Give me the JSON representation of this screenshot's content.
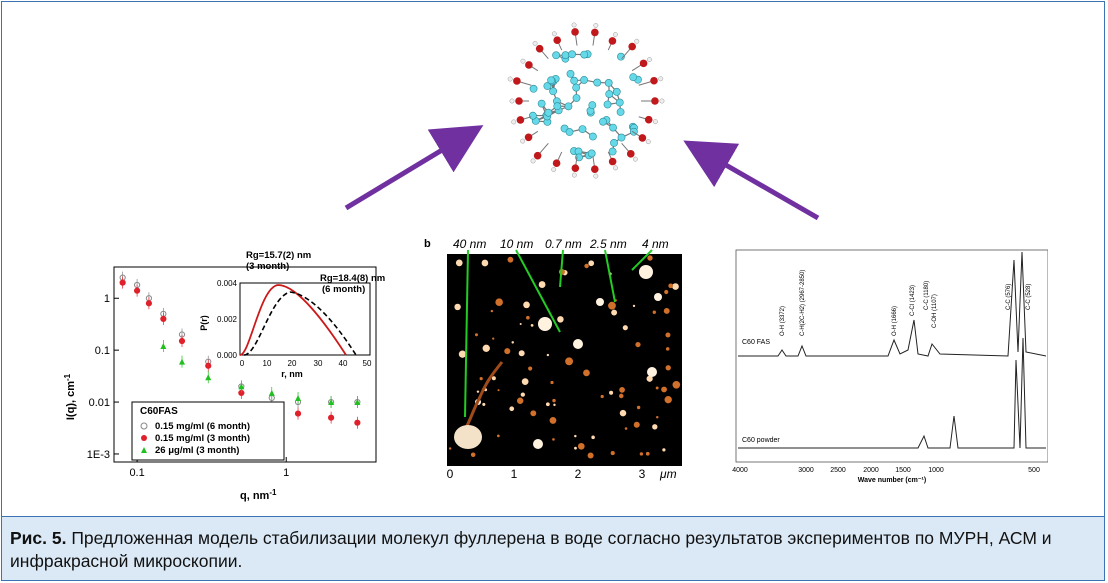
{
  "caption": {
    "label": "Рис. 5.",
    "text": " Предложенная модель стабилизации молекул фуллерена в воде согласно результатов экспериментов по МУРН, АСМ и инфракрасной микроскопии."
  },
  "colors": {
    "frame": "#3a74b5",
    "caption_bg": "#dbe9f7",
    "arrow": "#7030a0",
    "atom_c": "#66d9e8",
    "atom_o": "#c0181b"
  },
  "sans_panel": {
    "ylabel": "I(q), cm",
    "ylabel_sup": "-1",
    "xlabel": "q, nm",
    "xlabel_sup": "-1",
    "y_ticks": [
      "1",
      "0.1",
      "0.01",
      "1E-3"
    ],
    "x_ticks": [
      "0.1",
      "1"
    ],
    "legend_title": "C60FAS",
    "legend": [
      {
        "label": "0.15 mg/ml (6 month)",
        "marker": "open-circle",
        "color": "#888888"
      },
      {
        "label": "0.15 mg/ml (3 month)",
        "marker": "dot",
        "color": "#e0202a"
      },
      {
        "label": "26 μg/ml (3 month)",
        "marker": "triangle",
        "color": "#20c020"
      }
    ],
    "inset": {
      "ylabel": "P(r)",
      "xlabel": "r, nm",
      "y_ticks": [
        "0.000",
        "0.002",
        "0.004"
      ],
      "x_ticks": [
        "0",
        "10",
        "20",
        "30",
        "40",
        "50"
      ],
      "annot1": "Rg=15.7(2) nm",
      "annot1b": "(3 month)",
      "annot2": "Rg=18.4(8) nm",
      "annot2b": "(6 month)"
    }
  },
  "chart_data": {
    "type": "scatter",
    "xlabel": "q, nm-1",
    "ylabel": "I(q), cm-1",
    "xscale": "log",
    "yscale": "log",
    "xlim": [
      0.07,
      4
    ],
    "ylim": [
      0.0007,
      4
    ],
    "series": [
      {
        "name": "0.15 mg/ml (6 month)",
        "x": [
          0.08,
          0.1,
          0.12,
          0.15,
          0.2,
          0.3,
          0.5,
          0.8,
          1.2,
          2,
          3
        ],
        "y": [
          2.5,
          1.8,
          1.0,
          0.5,
          0.2,
          0.06,
          0.02,
          0.012,
          0.01,
          0.01,
          0.01
        ]
      },
      {
        "name": "0.15 mg/ml (3 month)",
        "x": [
          0.08,
          0.1,
          0.12,
          0.15,
          0.2,
          0.3,
          0.5,
          0.8,
          1.2,
          2,
          3
        ],
        "y": [
          2.0,
          1.4,
          0.8,
          0.4,
          0.15,
          0.05,
          0.015,
          0.008,
          0.006,
          0.005,
          0.004
        ]
      },
      {
        "name": "26 μg/ml (3 month)",
        "x": [
          0.15,
          0.2,
          0.3,
          0.5,
          0.8,
          1.2,
          2,
          3
        ],
        "y": [
          0.12,
          0.06,
          0.03,
          0.02,
          0.015,
          0.012,
          0.01,
          0.01
        ]
      }
    ]
  },
  "afm_panel": {
    "label": "b",
    "annotations": [
      "40 nm",
      "10 nm",
      "0.7 nm",
      "2.5 nm",
      "4 nm"
    ],
    "x_ticks": [
      "0",
      "1",
      "2",
      "3"
    ],
    "x_unit": "μm"
  },
  "ir_panel": {
    "xlabel": "Wave number (cm⁻¹)",
    "x_ticks": [
      "4000",
      "3000",
      "2500",
      "2000",
      "1500",
      "1000",
      "500"
    ],
    "spectrum1": "C60 FAS",
    "spectrum2": "C60 powder",
    "peaks": [
      "O-H (3372)",
      "C-H(2C-H2) (2967-2850)",
      "O-H (1666)",
      "C-Cl (1423)",
      "C-C (1180)",
      "C-OH (1107)",
      "C-C (576)",
      "C-C (528)"
    ]
  }
}
